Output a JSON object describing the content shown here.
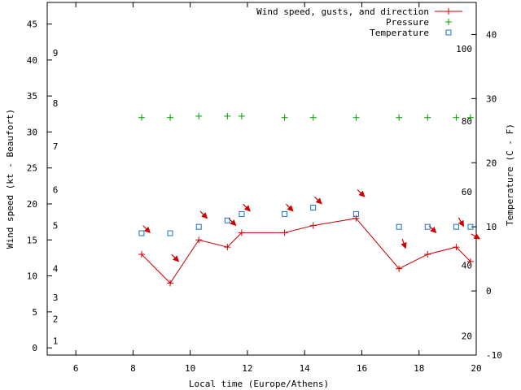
{
  "chart_data": {
    "type": "line",
    "xlabel": "Local time (Europe/Athens)",
    "ylabel": "Wind speed (kt - Beaufort)",
    "y2label": "Temperature (C - F)",
    "xlim": [
      5,
      20
    ],
    "ylim": [
      -1,
      48
    ],
    "y2lim": [
      -10,
      45
    ],
    "x_ticks": [
      6,
      8,
      10,
      12,
      14,
      16,
      18,
      20
    ],
    "y_ticks": [
      0,
      5,
      10,
      15,
      20,
      25,
      30,
      35,
      40,
      45
    ],
    "y2_ticks": [
      -10,
      0,
      10,
      20,
      30,
      40
    ],
    "beaufort_labels": [
      {
        "label": "1",
        "y": 1
      },
      {
        "label": "2",
        "y": 4
      },
      {
        "label": "3",
        "y": 7
      },
      {
        "label": "4",
        "y": 11
      },
      {
        "label": "5",
        "y": 17
      },
      {
        "label": "6",
        "y": 22
      },
      {
        "label": "7",
        "y": 28
      },
      {
        "label": "8",
        "y": 34
      },
      {
        "label": "9",
        "y": 41
      }
    ],
    "fahrenheit_labels": [
      {
        "label": "20",
        "y2": -7
      },
      {
        "label": "40",
        "y2": 4
      },
      {
        "label": "60",
        "y2": 15.5
      },
      {
        "label": "80",
        "y2": 26.5
      },
      {
        "label": "100",
        "y2": 37.8
      }
    ],
    "legend": [
      {
        "name": "Wind speed, gusts, and direction",
        "color": "#cc0000",
        "marker": "line-plus"
      },
      {
        "name": "Pressure",
        "color": "#00a000",
        "marker": "plus"
      },
      {
        "name": "Temperature",
        "color": "#1a73c8",
        "marker": "square"
      }
    ],
    "series": [
      {
        "name": "Wind speed, gusts, and direction",
        "x": [
          8.3,
          9.3,
          10.3,
          11.3,
          11.8,
          13.3,
          14.3,
          15.8,
          17.3,
          18.3,
          19.3,
          19.8
        ],
        "values": [
          13,
          9,
          15,
          14,
          16,
          16,
          17,
          18,
          11,
          13,
          14,
          12
        ],
        "direction_from_deg": [
          315,
          315,
          315,
          315,
          315,
          315,
          315,
          315,
          340,
          315,
          330,
          300
        ]
      },
      {
        "name": "Pressure",
        "x": [
          8.3,
          9.3,
          10.3,
          11.3,
          11.8,
          13.3,
          14.3,
          15.8,
          17.3,
          18.3,
          19.3,
          19.8
        ],
        "values": [
          32,
          32,
          32.2,
          32.2,
          32.2,
          32,
          32,
          32,
          32,
          32,
          32,
          32
        ]
      },
      {
        "name": "Temperature",
        "axis": "y2",
        "x": [
          8.3,
          9.3,
          10.3,
          11.3,
          11.8,
          13.3,
          14.3,
          15.8,
          17.3,
          18.3,
          19.3,
          19.8
        ],
        "values": [
          9,
          9,
          10,
          11,
          12,
          12,
          13,
          12,
          10,
          10,
          10,
          10
        ]
      }
    ]
  }
}
